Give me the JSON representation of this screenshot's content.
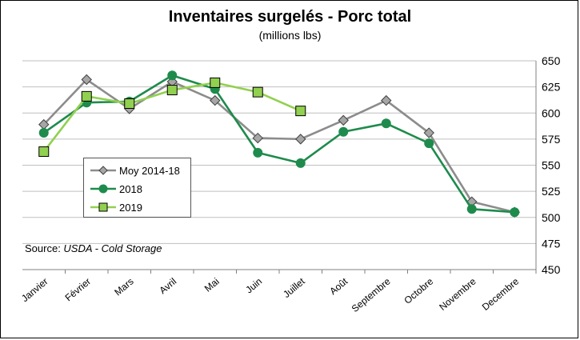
{
  "chart_data": {
    "type": "line",
    "title": "Inventaires surgelés - Porc total",
    "subtitle": "(millions lbs)",
    "source_prefix": "Source: ",
    "source_italic": "USDA - Cold Storage",
    "categories": [
      "Janvier",
      "Février",
      "Mars",
      "Avril",
      "Mai",
      "Juin",
      "Juillet",
      "Août",
      "Septembre",
      "Octobre",
      "Novembre",
      "Decembre"
    ],
    "ylim": [
      450,
      650
    ],
    "yticks": [
      450,
      475,
      500,
      525,
      550,
      575,
      600,
      625,
      650
    ],
    "grid": true,
    "legend_position": "left-middle",
    "series": [
      {
        "name": "Moy 2014-18",
        "marker": "diamond",
        "color": "#8c8c8c",
        "marker_fill": "#a6a6a6",
        "values": [
          589,
          632,
          604,
          630,
          612,
          576,
          575,
          593,
          612,
          581,
          515,
          505
        ]
      },
      {
        "name": "2018",
        "marker": "circle",
        "color": "#1e8b4c",
        "marker_fill": "#1e8b4c",
        "values": [
          581,
          610,
          611,
          636,
          623,
          562,
          552,
          582,
          590,
          571,
          508,
          505
        ]
      },
      {
        "name": "2019",
        "marker": "square",
        "color": "#92d050",
        "marker_fill": "#92d050",
        "values": [
          563,
          616,
          609,
          622,
          629,
          620,
          602,
          null,
          null,
          null,
          null,
          null
        ]
      }
    ]
  }
}
